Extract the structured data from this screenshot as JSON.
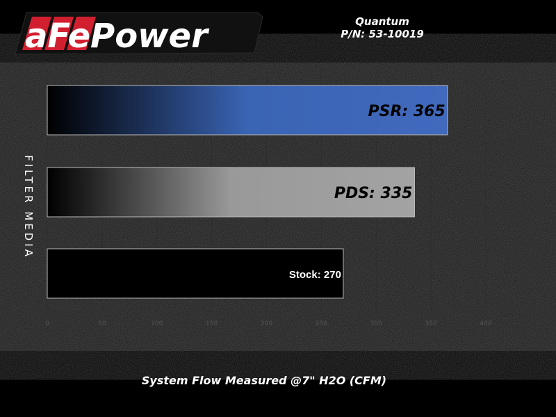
{
  "brand": {
    "logo_text": "aFePower"
  },
  "header": {
    "product": "Quantum",
    "part_number": "P/N: 53-10019"
  },
  "colors": {
    "psr": "#3f6bbf",
    "pds": "#a0a0a0",
    "stock": "#000000",
    "logo_red": "#d21f30"
  },
  "chart_data": {
    "type": "bar",
    "orientation": "horizontal",
    "categories": [
      "PSR",
      "PDS",
      "Stock"
    ],
    "values": [
      365,
      335,
      270
    ],
    "data_labels": [
      "PSR: 365",
      "PDS: 335",
      "Stock: 270"
    ],
    "xlabel": "System Flow Measured @7\" H2O (CFM)",
    "ylabel": "FILTER MEDIA",
    "xlim": [
      0,
      400
    ],
    "xticks": [
      "0",
      "50",
      "100",
      "150",
      "200",
      "250",
      "300",
      "350",
      "400"
    ],
    "grid": true
  }
}
